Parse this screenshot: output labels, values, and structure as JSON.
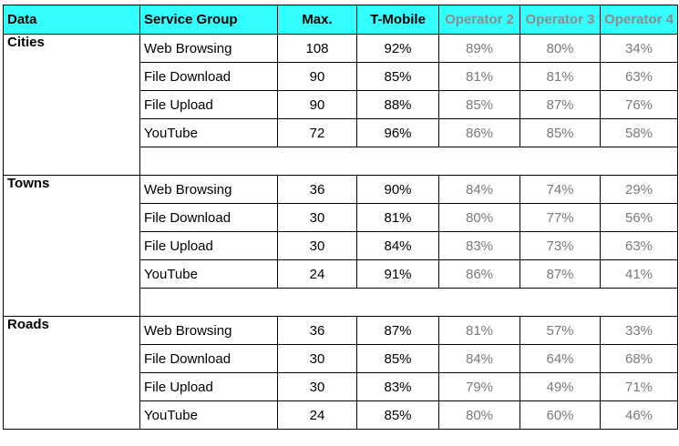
{
  "headers": {
    "data": "Data",
    "service_group": "Service Group",
    "max": "Max.",
    "tmobile": "T-Mobile",
    "operator2": "Operator 2",
    "operator3": "Operator 3",
    "operator4": "Operator 4"
  },
  "colors": {
    "header_bg": "#33ffff",
    "competitor_text": "#7a7a7a"
  },
  "groups": [
    {
      "label": "Cities",
      "rows": [
        {
          "service": "Web Browsing",
          "max": "108",
          "tmobile": "92%",
          "op2": "89%",
          "op3": "80%",
          "op4": "34%"
        },
        {
          "service": "File Download",
          "max": "90",
          "tmobile": "85%",
          "op2": "81%",
          "op3": "81%",
          "op4": "63%"
        },
        {
          "service": "File Upload",
          "max": "90",
          "tmobile": "88%",
          "op2": "85%",
          "op3": "87%",
          "op4": "76%"
        },
        {
          "service": "YouTube",
          "max": "72",
          "tmobile": "96%",
          "op2": "86%",
          "op3": "85%",
          "op4": "58%"
        }
      ]
    },
    {
      "label": "Towns",
      "rows": [
        {
          "service": "Web Browsing",
          "max": "36",
          "tmobile": "90%",
          "op2": "84%",
          "op3": "74%",
          "op4": "29%"
        },
        {
          "service": "File Download",
          "max": "30",
          "tmobile": "81%",
          "op2": "80%",
          "op3": "77%",
          "op4": "56%"
        },
        {
          "service": "File Upload",
          "max": "30",
          "tmobile": "84%",
          "op2": "83%",
          "op3": "73%",
          "op4": "63%"
        },
        {
          "service": "YouTube",
          "max": "24",
          "tmobile": "91%",
          "op2": "86%",
          "op3": "87%",
          "op4": "41%"
        }
      ]
    },
    {
      "label": "Roads",
      "rows": [
        {
          "service": "Web Browsing",
          "max": "36",
          "tmobile": "87%",
          "op2": "81%",
          "op3": "57%",
          "op4": "33%"
        },
        {
          "service": "File Download",
          "max": "30",
          "tmobile": "85%",
          "op2": "84%",
          "op3": "64%",
          "op4": "68%"
        },
        {
          "service": "File Upload",
          "max": "30",
          "tmobile": "83%",
          "op2": "79%",
          "op3": "49%",
          "op4": "71%"
        },
        {
          "service": "YouTube",
          "max": "24",
          "tmobile": "85%",
          "op2": "80%",
          "op3": "60%",
          "op4": "46%"
        }
      ]
    }
  ]
}
